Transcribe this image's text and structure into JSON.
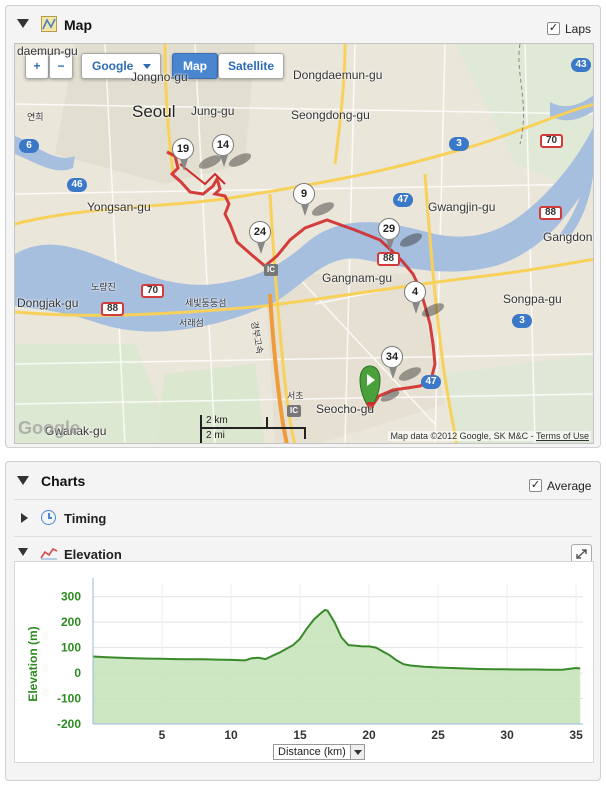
{
  "map_panel": {
    "title": "Map",
    "laps_label": "Laps",
    "laps_checked": true,
    "controls": {
      "zoom_in": "+",
      "zoom_out": "−",
      "provider": "Google",
      "map_type_map": "Map",
      "map_type_satellite": "Satellite"
    },
    "districts": [
      {
        "name": "daemun-gu",
        "size": "normal"
      },
      {
        "name": "Jongno-gu",
        "size": "normal"
      },
      {
        "name": "Dongdaemun-gu",
        "size": "normal"
      },
      {
        "name": "Seoul",
        "size": "big"
      },
      {
        "name": "Jung-gu",
        "size": "normal"
      },
      {
        "name": "Seongdong-gu",
        "size": "normal"
      },
      {
        "name": "Yongsan-gu",
        "size": "normal"
      },
      {
        "name": "Gwangjin-gu",
        "size": "normal"
      },
      {
        "name": "Gangdon",
        "size": "normal"
      },
      {
        "name": "Gangnam-gu",
        "size": "normal"
      },
      {
        "name": "Dongjak-gu",
        "size": "normal"
      },
      {
        "name": "Songpa-gu",
        "size": "normal"
      },
      {
        "name": "Seocho-gu",
        "size": "normal"
      },
      {
        "name": "Gwanak-gu",
        "size": "normal"
      }
    ],
    "korean_labels": [
      "연희",
      "노량진",
      "세빛둥둥섬",
      "서래섬",
      "경부고속",
      "서초"
    ],
    "road_shields_blue": [
      "43",
      "6",
      "3",
      "46",
      "47",
      "3",
      "47"
    ],
    "road_shields_red": [
      "70",
      "88",
      "70",
      "88",
      "88"
    ],
    "interchange_labels": [
      "IC",
      "IC"
    ],
    "lap_markers": [
      "19",
      "14",
      "9",
      "24",
      "29",
      "4",
      "34"
    ],
    "scale": {
      "km": "2 km",
      "mi": "2 mi"
    },
    "attribution": "Map data ©2012 Google, SK M&C - ",
    "terms_link": "Terms of Use",
    "logo": "Google"
  },
  "charts_panel": {
    "title": "Charts",
    "average_label": "Average",
    "average_checked": true,
    "timing_label": "Timing",
    "elevation_label": "Elevation"
  },
  "chart_data": {
    "type": "area",
    "title": "",
    "xlabel": "Distance (km)",
    "ylabel": "Elevation (m)",
    "xlim": [
      0,
      35.5
    ],
    "ylim": [
      -200,
      350
    ],
    "x_ticks": [
      5,
      10,
      15,
      20,
      25,
      30,
      35
    ],
    "y_ticks": [
      300,
      200,
      100,
      0,
      -100,
      -200
    ],
    "grid": true,
    "line_color": "#3a8a2a",
    "fill_color": "#c7e4bb",
    "axis_label_color": "#2e8b22",
    "series": [
      {
        "x": [
          0,
          1,
          2,
          3,
          4,
          5,
          6,
          7,
          8,
          9,
          10,
          11,
          11.5,
          12,
          12.5,
          13,
          13.5,
          14,
          14.5,
          15,
          15.5,
          16,
          16.5,
          16.8,
          17,
          17.5,
          18,
          18.5,
          19,
          19.5,
          20,
          20.5,
          21,
          21.5,
          22,
          22.5,
          23,
          24,
          25,
          26,
          27,
          28,
          29,
          30,
          31,
          32,
          33,
          34,
          35,
          35.3
        ],
        "y": [
          65,
          62,
          60,
          58,
          57,
          56,
          55,
          54,
          54,
          53,
          52,
          50,
          58,
          60,
          55,
          68,
          80,
          95,
          110,
          135,
          175,
          210,
          235,
          248,
          245,
          200,
          140,
          110,
          108,
          105,
          105,
          100,
          85,
          70,
          50,
          35,
          30,
          25,
          22,
          20,
          18,
          16,
          15,
          15,
          14,
          14,
          13,
          13,
          20,
          18
        ]
      }
    ]
  }
}
